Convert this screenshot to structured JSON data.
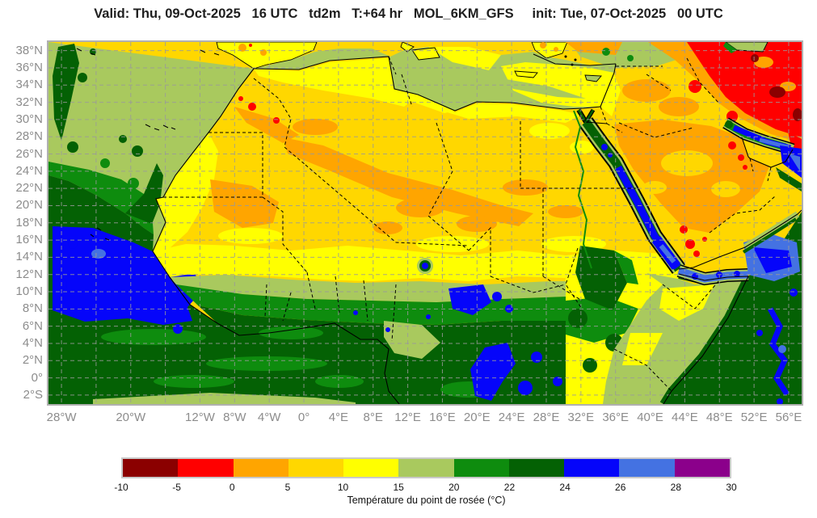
{
  "title": "Valid: Thu, 09-Oct-2025   16 UTC   td2m   T:+64 hr   MOL_6KM_GFS     init: Tue, 07-Oct-2025   00 UTC",
  "axes": {
    "lat_ticks": [
      {
        "label": "38°N",
        "deg": 38
      },
      {
        "label": "36°N",
        "deg": 36
      },
      {
        "label": "34°N",
        "deg": 34
      },
      {
        "label": "32°N",
        "deg": 32
      },
      {
        "label": "30°N",
        "deg": 30
      },
      {
        "label": "28°N",
        "deg": 28
      },
      {
        "label": "26°N",
        "deg": 26
      },
      {
        "label": "24°N",
        "deg": 24
      },
      {
        "label": "22°N",
        "deg": 22
      },
      {
        "label": "20°N",
        "deg": 20
      },
      {
        "label": "18°N",
        "deg": 18
      },
      {
        "label": "16°N",
        "deg": 16
      },
      {
        "label": "14°N",
        "deg": 14
      },
      {
        "label": "12°N",
        "deg": 12
      },
      {
        "label": "10°N",
        "deg": 10
      },
      {
        "label": "8°N",
        "deg": 8
      },
      {
        "label": "6°N",
        "deg": 6
      },
      {
        "label": "4°N",
        "deg": 4
      },
      {
        "label": "2°N",
        "deg": 2
      },
      {
        "label": "0°",
        "deg": 0
      },
      {
        "label": "2°S",
        "deg": -2
      }
    ],
    "lon_ticks": [
      {
        "label": "28°W",
        "deg": -28
      },
      {
        "label": "20°W",
        "deg": -20
      },
      {
        "label": "12°W",
        "deg": -12
      },
      {
        "label": "8°W",
        "deg": -8
      },
      {
        "label": "4°W",
        "deg": -4
      },
      {
        "label": "0°",
        "deg": 0
      },
      {
        "label": "4°E",
        "deg": 4
      },
      {
        "label": "8°E",
        "deg": 8
      },
      {
        "label": "12°E",
        "deg": 12
      },
      {
        "label": "16°E",
        "deg": 16
      },
      {
        "label": "20°E",
        "deg": 20
      },
      {
        "label": "24°E",
        "deg": 24
      },
      {
        "label": "28°E",
        "deg": 28
      },
      {
        "label": "32°E",
        "deg": 32
      },
      {
        "label": "36°E",
        "deg": 36
      },
      {
        "label": "40°E",
        "deg": 40
      },
      {
        "label": "44°E",
        "deg": 44
      },
      {
        "label": "48°E",
        "deg": 48
      },
      {
        "label": "52°E",
        "deg": 52
      },
      {
        "label": "56°E",
        "deg": 56
      }
    ]
  },
  "colorbar": {
    "caption": "Température du point de rosée (°C)",
    "ticks": [
      "-10",
      "-5",
      "0",
      "5",
      "10",
      "15",
      "20",
      "22",
      "24",
      "26",
      "28",
      "30"
    ],
    "segment_colors": [
      "#8B0000",
      "#FF0000",
      "#FFA500",
      "#FFD700",
      "#FFFF00",
      "#A9C95E",
      "#0E8C0E",
      "#046104",
      "#0505FA",
      "#4472E2",
      "#8B008B"
    ]
  },
  "grid": {
    "color": "#9a9a9a",
    "lon_step": 4,
    "lat_step": 2,
    "lon_range": [
      -28,
      56
    ],
    "lat_range": [
      -2,
      38
    ]
  }
}
